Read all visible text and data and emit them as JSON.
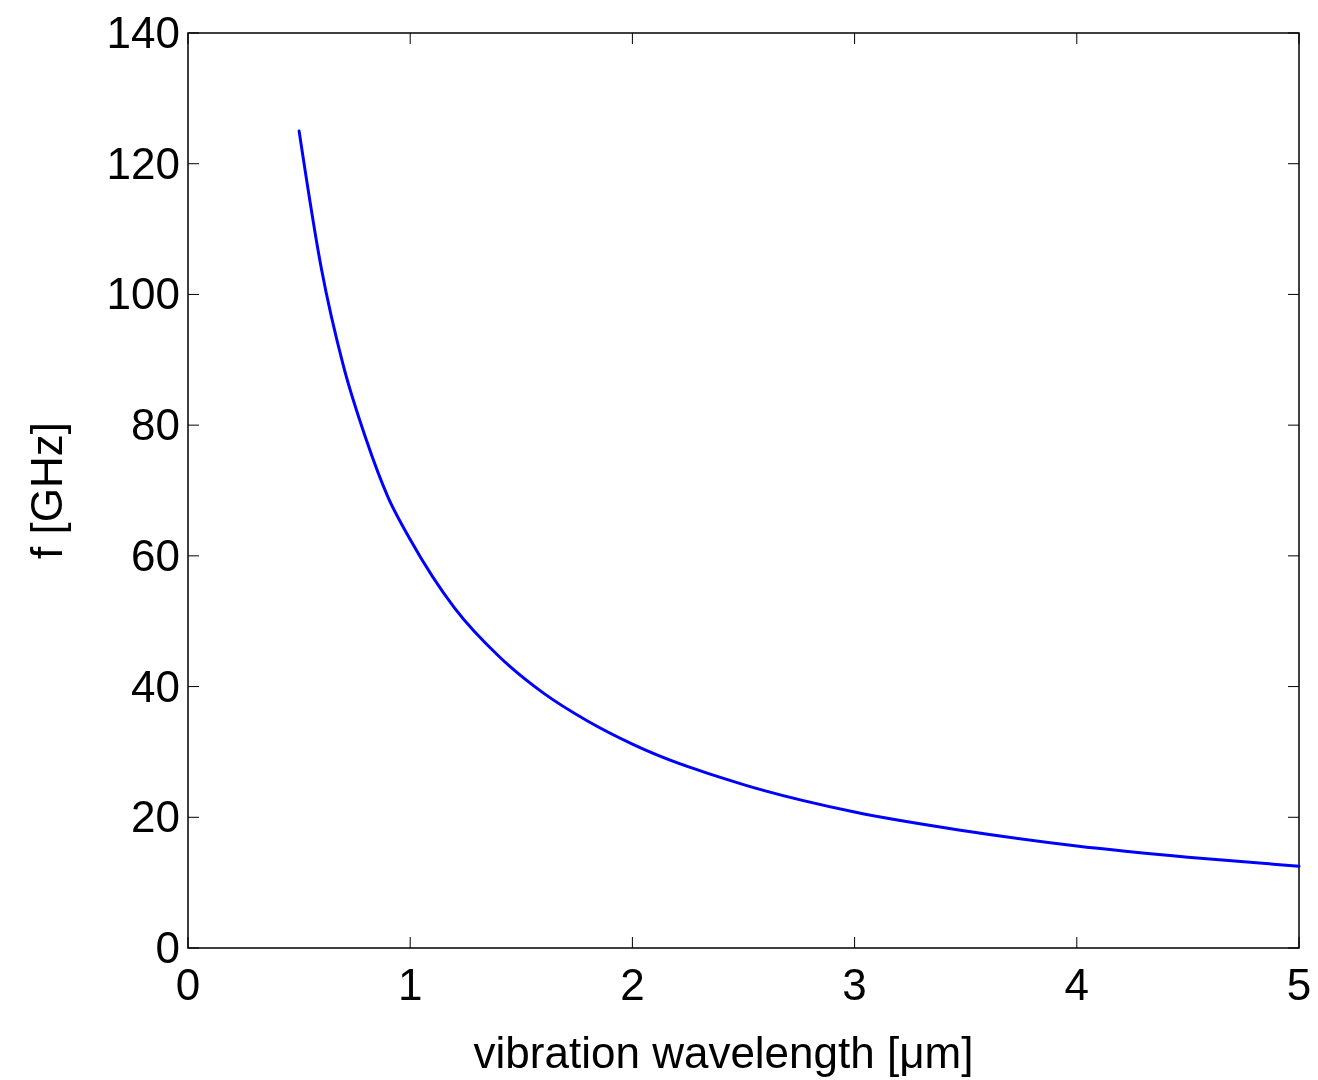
{
  "chart_data": {
    "type": "line",
    "xlabel": "vibration wavelength [μm]",
    "ylabel": "f [GHz]",
    "x": [
      0.5,
      0.6,
      0.7,
      0.8,
      0.9,
      1,
      1.2,
      1.4,
      1.6,
      1.8,
      2,
      2.5,
      3,
      3.5,
      4,
      4.5,
      5
    ],
    "series": [
      {
        "color": "#0000ff",
        "values": [
          125,
          104,
          89,
          78,
          69,
          62.5,
          52,
          44.6,
          39,
          34.7,
          31.2,
          25,
          20.8,
          17.9,
          15.6,
          13.9,
          12.5
        ]
      }
    ],
    "xlim": [
      0,
      5
    ],
    "xticks": [
      0,
      1,
      2,
      3,
      4,
      5
    ],
    "ylim": [
      0,
      140
    ],
    "yticks": [
      0,
      20,
      40,
      60,
      80,
      100,
      120,
      140
    ],
    "grid": false,
    "marker": "none",
    "line_style": "solid"
  }
}
